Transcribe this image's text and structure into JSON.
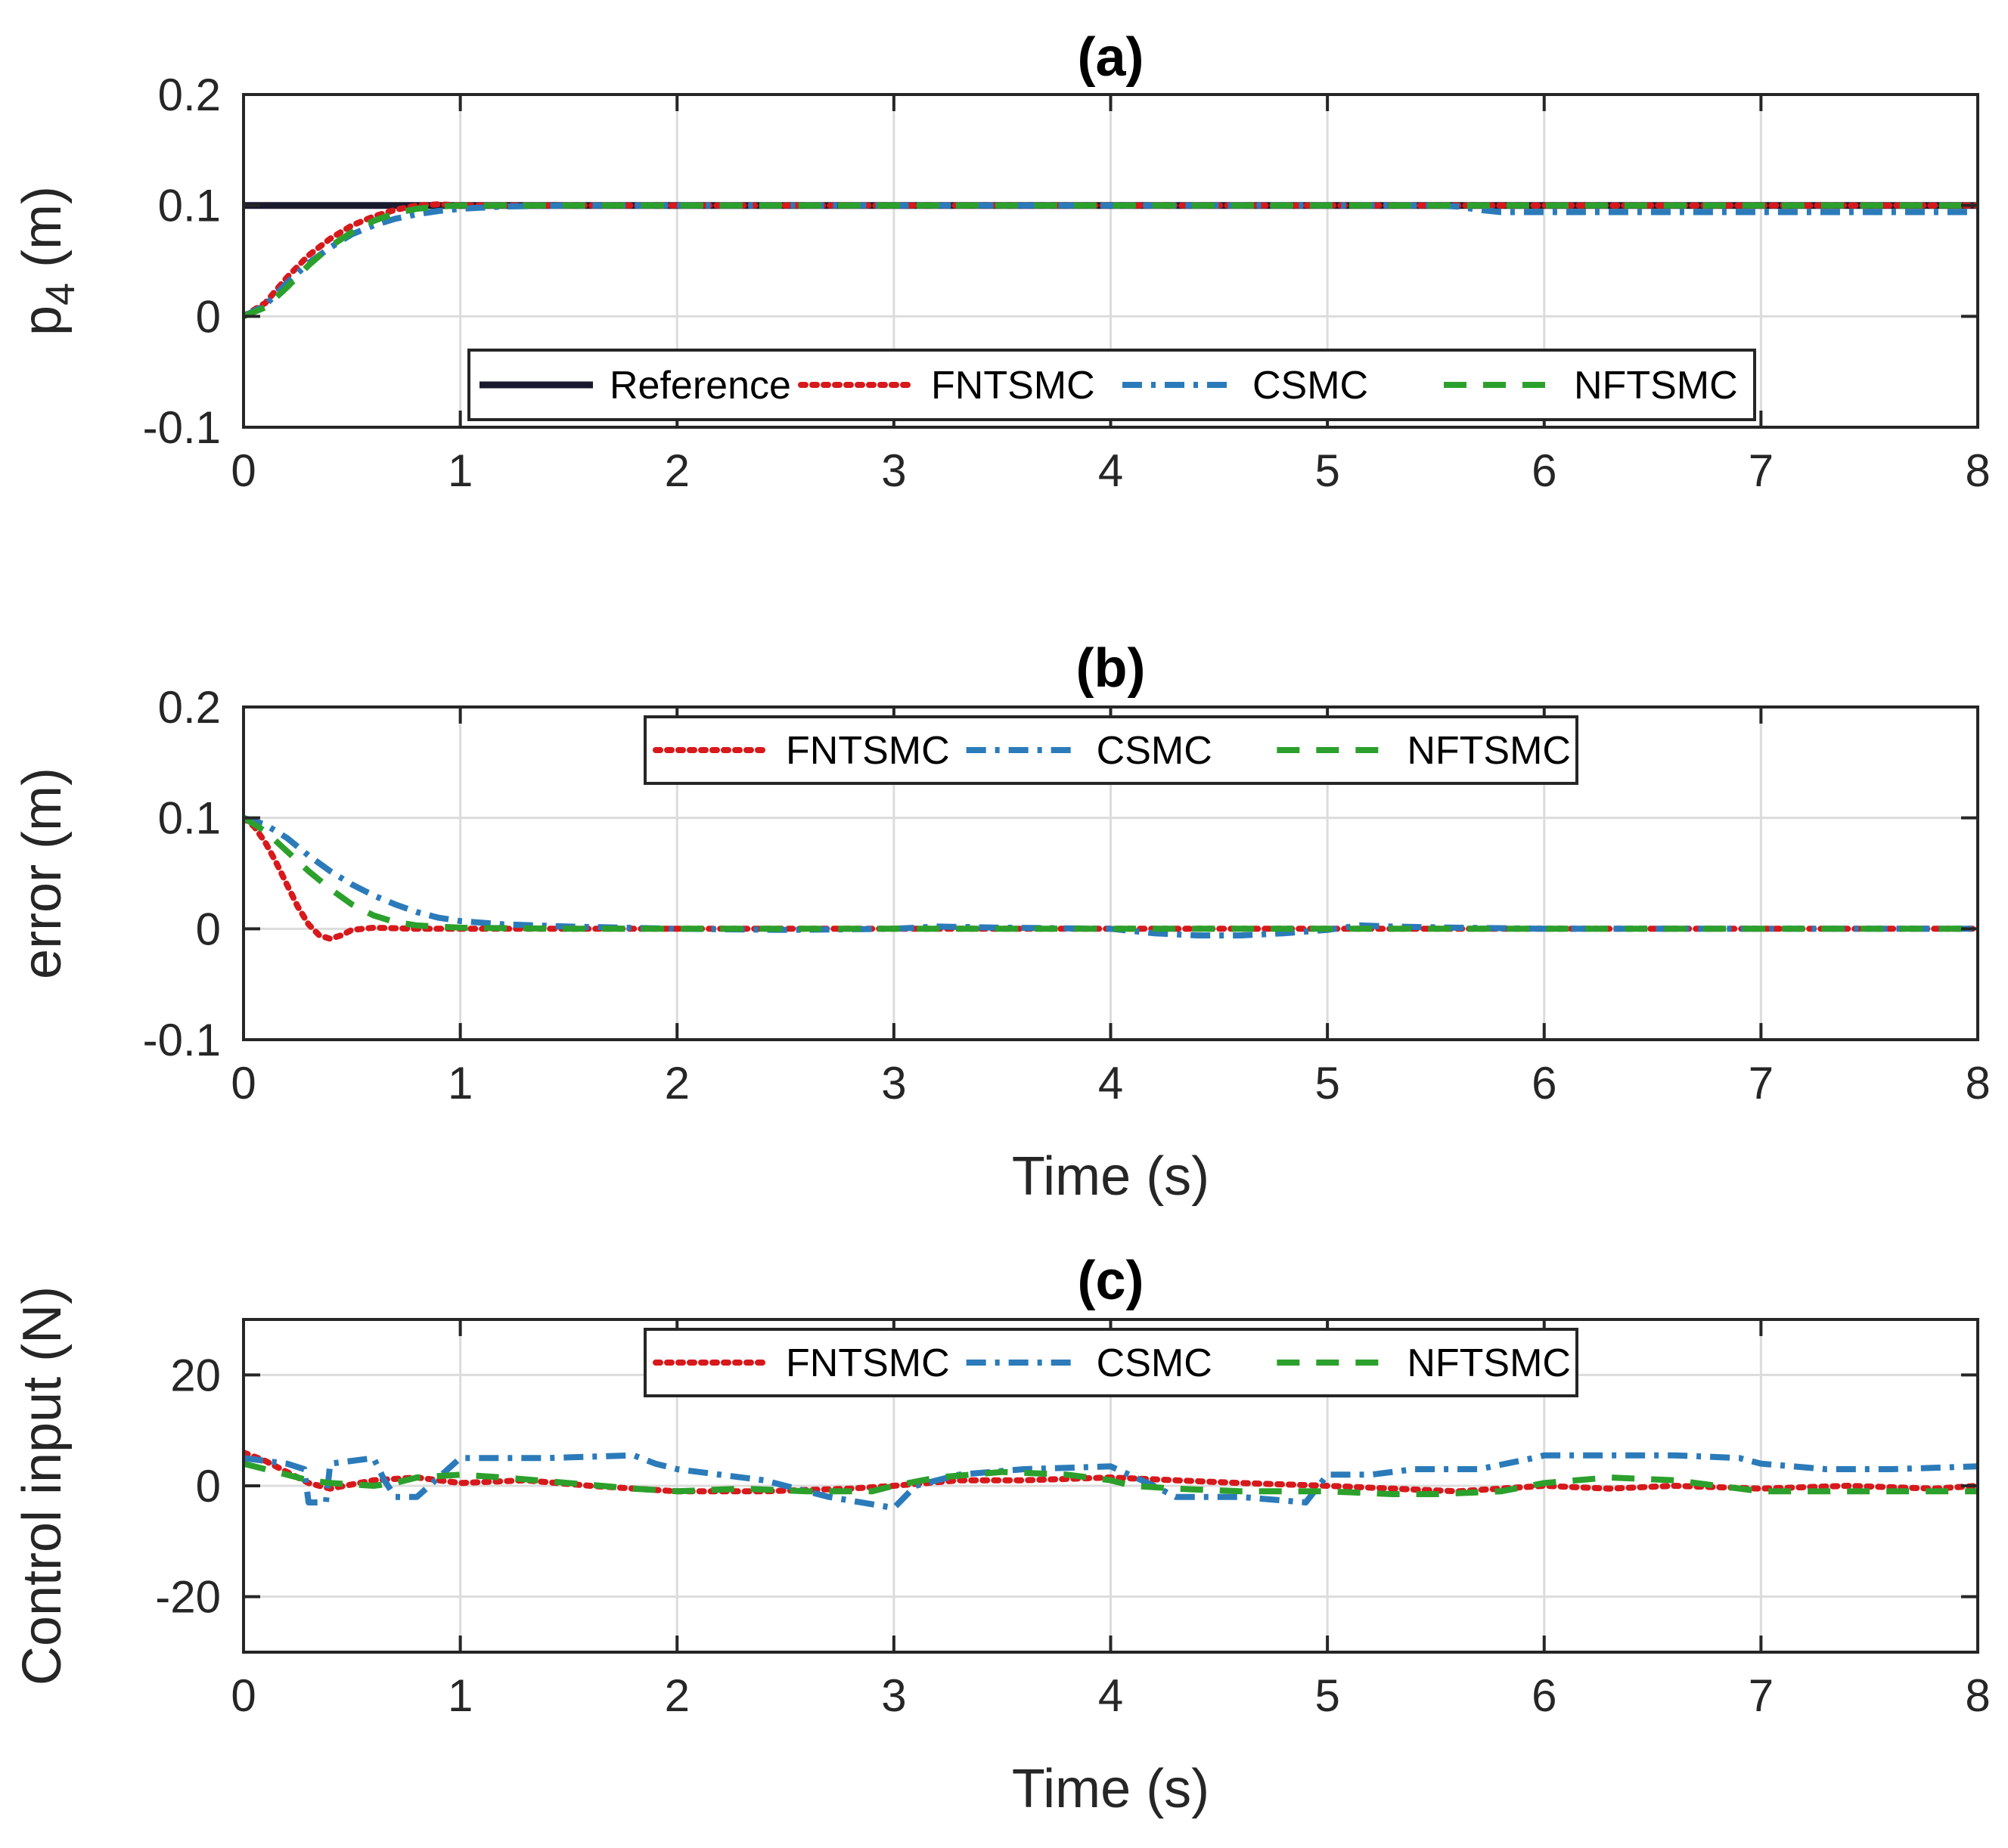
{
  "chart_data": [
    {
      "type": "line",
      "title": "(a)",
      "xlabel": "",
      "ylabel": "p",
      "ylabel_subscript": "4",
      "ylabel_unit": "(m)",
      "xlim": [
        0,
        8
      ],
      "ylim": [
        -0.1,
        0.2
      ],
      "xticks": [
        0,
        1,
        2,
        3,
        4,
        5,
        6,
        7,
        8
      ],
      "yticks": [
        -0.1,
        0,
        0.1,
        0.2
      ],
      "xtick_labels": [
        "0",
        "1",
        "2",
        "3",
        "4",
        "5",
        "6",
        "7",
        "8"
      ],
      "ytick_labels": [
        "-0.1",
        "0",
        "0.1",
        "0.2"
      ],
      "grid": true,
      "legend_position": "bottom-center",
      "legend": [
        "Reference",
        "FNTSMC",
        "CSMC",
        "NFTSMC"
      ],
      "series": [
        {
          "name": "Reference",
          "color": "#1a1a2e",
          "style": "solid",
          "x": [
            0,
            8
          ],
          "y": [
            0.1,
            0.1
          ]
        },
        {
          "name": "FNTSMC",
          "color": "#d7191c",
          "style": "dotted",
          "x": [
            0,
            0.1,
            0.2,
            0.3,
            0.4,
            0.5,
            0.6,
            0.7,
            0.8,
            0.9,
            1.0,
            1.5,
            2,
            3,
            4,
            5,
            5.6,
            5.8,
            6,
            7,
            8
          ],
          "y": [
            0,
            0.012,
            0.035,
            0.055,
            0.07,
            0.082,
            0.09,
            0.096,
            0.1,
            0.101,
            0.1,
            0.1,
            0.1,
            0.1,
            0.1,
            0.1,
            0.1,
            0.1,
            0.1,
            0.1,
            0.1
          ]
        },
        {
          "name": "CSMC",
          "color": "#2b7bba",
          "style": "dashdot",
          "x": [
            0,
            0.1,
            0.2,
            0.3,
            0.4,
            0.5,
            0.6,
            0.7,
            0.8,
            0.9,
            1.0,
            1.2,
            1.5,
            2,
            3,
            4,
            5,
            5.5,
            5.6,
            5.7,
            5.8,
            6,
            7,
            8
          ],
          "y": [
            0,
            0.01,
            0.03,
            0.048,
            0.062,
            0.074,
            0.082,
            0.088,
            0.092,
            0.095,
            0.097,
            0.099,
            0.1,
            0.1,
            0.1,
            0.1,
            0.1,
            0.1,
            0.099,
            0.096,
            0.094,
            0.094,
            0.094,
            0.094
          ]
        },
        {
          "name": "NFTSMC",
          "color": "#2ca02c",
          "style": "dashed",
          "x": [
            0,
            0.1,
            0.2,
            0.3,
            0.4,
            0.5,
            0.6,
            0.7,
            0.8,
            0.9,
            1.0,
            1.5,
            2,
            3,
            4,
            5,
            6,
            7,
            8
          ],
          "y": [
            0,
            0.008,
            0.026,
            0.046,
            0.063,
            0.076,
            0.086,
            0.093,
            0.097,
            0.099,
            0.1,
            0.1,
            0.1,
            0.1,
            0.1,
            0.1,
            0.1,
            0.1,
            0.1
          ]
        }
      ]
    },
    {
      "type": "line",
      "title": "(b)",
      "xlabel": "Time (s)",
      "ylabel": "error (m)",
      "xlim": [
        0,
        8
      ],
      "ylim": [
        -0.1,
        0.2
      ],
      "xticks": [
        0,
        1,
        2,
        3,
        4,
        5,
        6,
        7,
        8
      ],
      "yticks": [
        -0.1,
        0,
        0.1,
        0.2
      ],
      "xtick_labels": [
        "0",
        "1",
        "2",
        "3",
        "4",
        "5",
        "6",
        "7",
        "8"
      ],
      "ytick_labels": [
        "-0.1",
        "0",
        "0.1",
        "0.2"
      ],
      "grid": true,
      "legend_position": "top-center",
      "legend": [
        "FNTSMC",
        "CSMC",
        "NFTSMC"
      ],
      "series": [
        {
          "name": "FNTSMC",
          "color": "#d7191c",
          "style": "dotted",
          "x": [
            0,
            0.05,
            0.1,
            0.15,
            0.2,
            0.25,
            0.3,
            0.35,
            0.4,
            0.45,
            0.5,
            0.6,
            0.7,
            0.8,
            1.0,
            2,
            3,
            4,
            5,
            6,
            7,
            8
          ],
          "y": [
            0.1,
            0.092,
            0.078,
            0.06,
            0.04,
            0.02,
            0.004,
            -0.006,
            -0.009,
            -0.006,
            -0.001,
            0.001,
            0.0005,
            0,
            0,
            0,
            0,
            0,
            0,
            0,
            0,
            0
          ]
        },
        {
          "name": "CSMC",
          "color": "#2b7bba",
          "style": "dashdot",
          "x": [
            0,
            0.1,
            0.2,
            0.3,
            0.4,
            0.5,
            0.6,
            0.7,
            0.8,
            0.9,
            1.0,
            1.2,
            1.5,
            2,
            2.5,
            3,
            3.2,
            3.5,
            4,
            4.2,
            4.4,
            4.6,
            4.8,
            5,
            5.15,
            5.3,
            5.6,
            6,
            7,
            8
          ],
          "y": [
            0.1,
            0.094,
            0.082,
            0.066,
            0.052,
            0.04,
            0.03,
            0.022,
            0.015,
            0.01,
            0.007,
            0.004,
            0.002,
            0,
            -0.001,
            0,
            0.002,
            0.001,
            0,
            -0.004,
            -0.006,
            -0.006,
            -0.004,
            -0.001,
            0.003,
            0.002,
            0.001,
            0,
            0,
            0
          ]
        },
        {
          "name": "NFTSMC",
          "color": "#2ca02c",
          "style": "dashed",
          "x": [
            0,
            0.1,
            0.2,
            0.3,
            0.4,
            0.5,
            0.6,
            0.7,
            0.8,
            1.0,
            1.5,
            2,
            3,
            4,
            5,
            6,
            7,
            8
          ],
          "y": [
            0.1,
            0.088,
            0.07,
            0.052,
            0.036,
            0.022,
            0.012,
            0.006,
            0.003,
            0.001,
            0,
            0,
            0,
            0,
            0,
            0,
            0,
            0
          ]
        }
      ]
    },
    {
      "type": "line",
      "title": "(c)",
      "xlabel": "Time (s)",
      "ylabel": "Control input (N)",
      "xlim": [
        0,
        8
      ],
      "ylim": [
        -30,
        30
      ],
      "xticks": [
        0,
        1,
        2,
        3,
        4,
        5,
        6,
        7,
        8
      ],
      "yticks": [
        -20,
        0,
        20
      ],
      "xtick_labels": [
        "0",
        "1",
        "2",
        "3",
        "4",
        "5",
        "6",
        "7",
        "8"
      ],
      "ytick_labels": [
        "-20",
        "0",
        "20"
      ],
      "grid": true,
      "legend_position": "top-center",
      "legend": [
        "FNTSMC",
        "CSMC",
        "NFTSMC"
      ],
      "series": [
        {
          "name": "FNTSMC",
          "color": "#d7191c",
          "style": "dotted",
          "x": [
            0,
            0.1,
            0.2,
            0.3,
            0.4,
            0.6,
            0.8,
            1.0,
            1.3,
            1.6,
            2.0,
            2.4,
            2.8,
            3.0,
            3.3,
            3.6,
            4.0,
            4.3,
            4.6,
            5.0,
            5.3,
            5.6,
            6.0,
            6.3,
            6.6,
            7.0,
            7.4,
            7.8,
            8
          ],
          "y": [
            6,
            4.5,
            2.5,
            0.5,
            -0.5,
            1,
            1.5,
            0.5,
            1,
            0,
            -1,
            -1,
            -0.5,
            0,
            1,
            1,
            1.5,
            1,
            0.5,
            0,
            -0.5,
            -1,
            0,
            -0.5,
            0,
            -0.5,
            0,
            -0.5,
            0
          ]
        },
        {
          "name": "CSMC",
          "color": "#2b7bba",
          "style": "dashdot",
          "x": [
            0,
            0.2,
            0.28,
            0.3,
            0.38,
            0.4,
            0.6,
            0.65,
            0.7,
            0.8,
            1.0,
            1.4,
            1.8,
            1.9,
            2.0,
            2.4,
            2.7,
            3.0,
            3.1,
            3.3,
            3.6,
            4.0,
            4.2,
            4.3,
            4.6,
            4.9,
            5.0,
            5.2,
            5.4,
            5.7,
            5.95,
            6.0,
            6.3,
            6.6,
            6.9,
            7.0,
            7.3,
            7.6,
            8
          ],
          "y": [
            5,
            4,
            3,
            -3,
            -3,
            4,
            5,
            1,
            -2,
            -2,
            5,
            5,
            5.5,
            4,
            3,
            1,
            -2,
            -4,
            0,
            2,
            3,
            3.5,
            0,
            -2,
            -2,
            -3,
            2,
            2,
            3,
            3,
            5,
            5.5,
            5.5,
            5.5,
            5,
            4,
            3,
            3,
            3.5
          ]
        },
        {
          "name": "NFTSMC",
          "color": "#2ca02c",
          "style": "dashed",
          "x": [
            0,
            0.1,
            0.2,
            0.3,
            0.4,
            0.6,
            0.7,
            0.8,
            1.0,
            1.2,
            1.5,
            1.8,
            2.0,
            2.3,
            2.6,
            2.9,
            3.0,
            3.2,
            3.5,
            3.8,
            4.0,
            4.1,
            4.3,
            4.6,
            5.0,
            5.3,
            5.5,
            5.8,
            6.0,
            6.3,
            6.6,
            7.0,
            7.3,
            7.6,
            8
          ],
          "y": [
            4,
            3,
            2,
            1,
            0.5,
            0,
            0.5,
            1.5,
            2,
            1.5,
            0.5,
            -0.5,
            -1,
            -0.5,
            -1,
            -1,
            0,
            1.5,
            2.5,
            2,
            1,
            0,
            -0.5,
            -1,
            -1,
            -1.5,
            -1.5,
            -1,
            0.5,
            1.5,
            1,
            -1,
            -1,
            -1,
            -1
          ]
        }
      ]
    }
  ]
}
